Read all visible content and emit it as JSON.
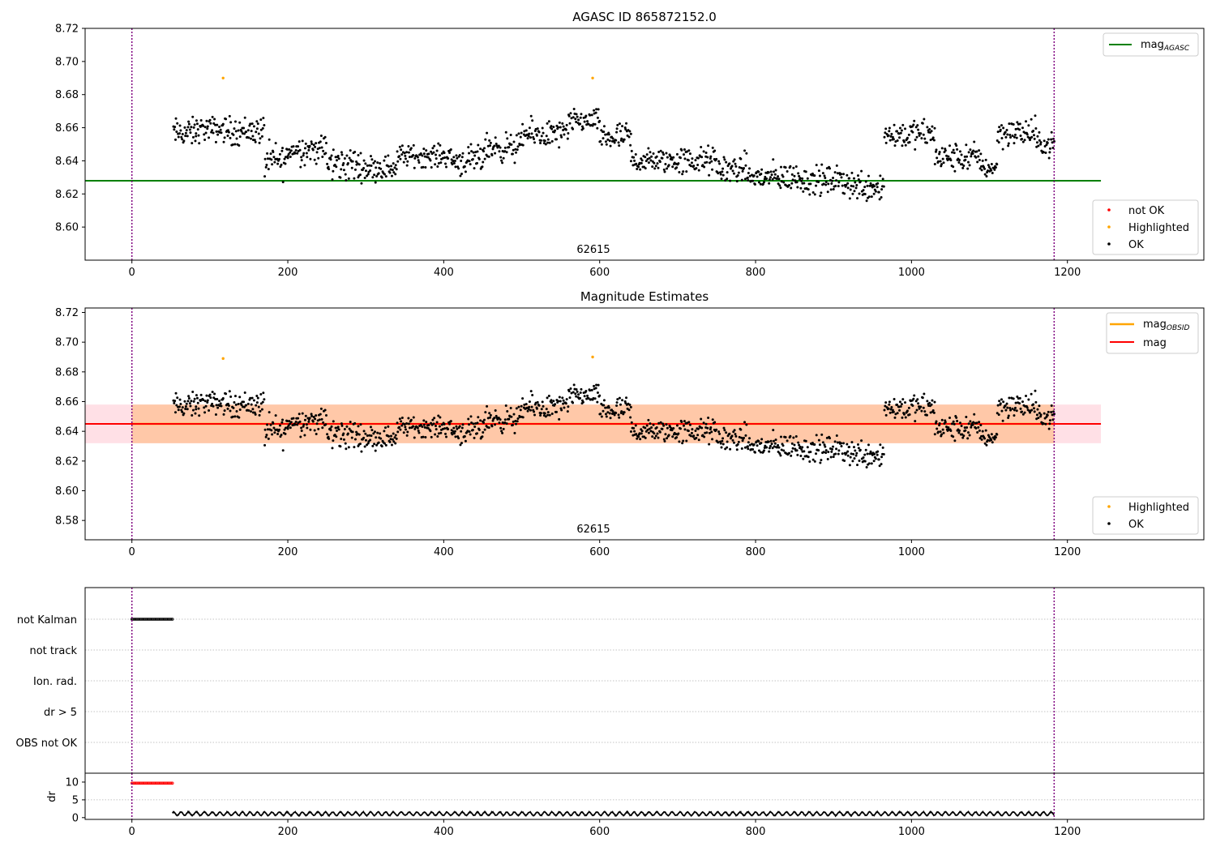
{
  "colors": {
    "ok": "#000000",
    "highlighted": "#ffa500",
    "not_ok": "#ff0000",
    "agasc_line": "#008000",
    "mag_line": "#ff0000",
    "mag_obsid": "#ffa500",
    "band_obsid": "#ffc8a8",
    "band_mag": "#ffe0e6",
    "obs_boundary": "#800080",
    "grid": "#b0b0b0"
  },
  "chart_data": [
    {
      "type": "scatter",
      "title": "AGASC ID 865872152.0",
      "xlabel": "",
      "ylabel": "",
      "xlim": [
        -60,
        1375
      ],
      "ylim": [
        8.58,
        8.72
      ],
      "xticks": [
        "0",
        "200",
        "400",
        "600",
        "800",
        "1000",
        "1200"
      ],
      "yticks": [
        "8.60",
        "8.62",
        "8.64",
        "8.66",
        "8.68",
        "8.70",
        "8.72"
      ],
      "obsid_label": "62615",
      "obs_boundaries": [
        0,
        1183
      ],
      "legend_lines": [
        {
          "label": "mag",
          "sub": "AGASC",
          "color": "#008000"
        }
      ],
      "legend_points": [
        {
          "label": "not OK",
          "color": "#ff0000"
        },
        {
          "label": "Highlighted",
          "color": "#ffa500"
        },
        {
          "label": "OK",
          "color": "#000000"
        }
      ],
      "hline": {
        "name": "mag_AGASC",
        "value": 8.628,
        "x": [
          -60,
          1243
        ]
      },
      "series": [
        {
          "name": "Highlighted",
          "points": [
            [
              117,
              8.69
            ],
            [
              591,
              8.69
            ]
          ]
        },
        {
          "name": "OK",
          "segments": [
            [
              53,
              82,
              8.657,
              0.008
            ],
            [
              82,
              120,
              8.659,
              0.007
            ],
            [
              120,
              170,
              8.658,
              0.008
            ],
            [
              170,
              200,
              8.64,
              0.01
            ],
            [
              200,
              250,
              8.647,
              0.008
            ],
            [
              250,
              290,
              8.638,
              0.01
            ],
            [
              290,
              340,
              8.636,
              0.007
            ],
            [
              340,
              410,
              8.643,
              0.006
            ],
            [
              410,
              450,
              8.64,
              0.008
            ],
            [
              450,
              500,
              8.648,
              0.008
            ],
            [
              500,
              560,
              8.656,
              0.008
            ],
            [
              560,
              600,
              8.664,
              0.006
            ],
            [
              600,
              640,
              8.654,
              0.008
            ],
            [
              640,
              700,
              8.64,
              0.007
            ],
            [
              700,
              750,
              8.64,
              0.008
            ],
            [
              750,
              790,
              8.635,
              0.008
            ],
            [
              790,
              860,
              8.63,
              0.008
            ],
            [
              860,
              920,
              8.628,
              0.008
            ],
            [
              920,
              965,
              8.625,
              0.009
            ],
            [
              965,
              1030,
              8.656,
              0.008
            ],
            [
              1030,
              1090,
              8.642,
              0.008
            ],
            [
              1090,
              1110,
              8.636,
              0.006
            ],
            [
              1110,
              1160,
              8.657,
              0.008
            ],
            [
              1160,
              1183,
              8.65,
              0.006
            ]
          ]
        }
      ]
    },
    {
      "type": "scatter",
      "title": "Magnitude Estimates",
      "xlabel": "",
      "ylabel": "",
      "xlim": [
        -60,
        1375
      ],
      "ylim": [
        8.567,
        8.723
      ],
      "xticks": [
        "0",
        "200",
        "400",
        "600",
        "800",
        "1000",
        "1200"
      ],
      "yticks": [
        "8.58",
        "8.60",
        "8.62",
        "8.64",
        "8.66",
        "8.68",
        "8.70",
        "8.72"
      ],
      "obsid_label": "62615",
      "obs_boundaries": [
        0,
        1183
      ],
      "legend_lines": [
        {
          "label": "mag",
          "sub": "OBSID",
          "color": "#ffa500"
        },
        {
          "label": "mag",
          "sub": "",
          "color": "#ff0000"
        }
      ],
      "legend_points": [
        {
          "label": "Highlighted",
          "color": "#ffa500"
        },
        {
          "label": "OK",
          "color": "#000000"
        }
      ],
      "mag": 8.645,
      "mag_band": [
        8.632,
        8.658
      ],
      "mag_x": [
        -60,
        1243
      ],
      "mag_obsid": 8.645,
      "obsid_band": [
        8.632,
        8.658
      ],
      "obsid_x": [
        0,
        1183
      ],
      "series": [
        {
          "name": "Highlighted",
          "points": [
            [
              117,
              8.689
            ],
            [
              591,
              8.69
            ]
          ]
        },
        {
          "name": "OK",
          "same_as_panel": 0
        }
      ]
    },
    {
      "type": "scatter",
      "title": "",
      "xlabel": "",
      "ylabel": "",
      "xlim": [
        -60,
        1375
      ],
      "xticks": [
        "0",
        "200",
        "400",
        "600",
        "800",
        "1000",
        "1200"
      ],
      "categories": [
        "not Kalman",
        "not track",
        "Ion. rad.",
        "dr > 5",
        "OBS not OK"
      ],
      "obs_boundaries": [
        0,
        1183
      ],
      "series": [
        {
          "name": "not Kalman",
          "x_range": [
            0,
            52
          ],
          "step": 1.3
        }
      ]
    },
    {
      "type": "line",
      "title": "",
      "xlabel": "",
      "ylabel": "dr",
      "xlim": [
        -60,
        1375
      ],
      "ylim": [
        -0.5,
        12.5
      ],
      "yticks": [
        "0",
        "5",
        "10"
      ],
      "xticks": [
        "0",
        "200",
        "400",
        "600",
        "800",
        "1000",
        "1200"
      ],
      "obs_boundaries": [
        0,
        1183
      ],
      "series": [
        {
          "name": "dr > 5",
          "x_range": [
            0,
            52
          ],
          "value": 9.7,
          "color": "#ff0000"
        },
        {
          "name": "dr",
          "x_range": [
            52,
            1183
          ],
          "mean": 1.1,
          "amplitude": 0.6,
          "color": "#000000"
        }
      ]
    }
  ]
}
